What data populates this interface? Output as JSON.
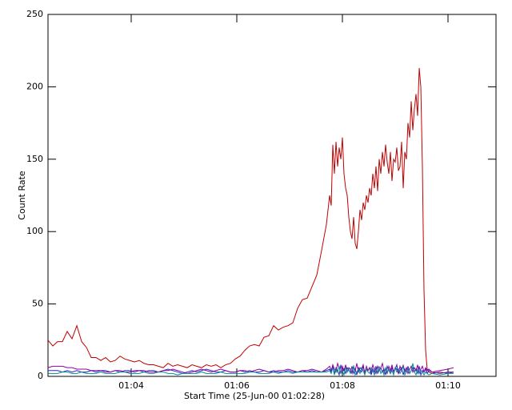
{
  "chart_data": {
    "type": "line",
    "xlabel": "Start Time (25-Jun-00 01:02:28)",
    "ylabel": "Count Rate",
    "x": [
      62.424,
      62.515,
      62.606,
      62.697,
      62.788,
      62.879,
      62.97,
      63.061,
      63.152,
      63.242,
      63.333,
      63.424,
      63.515,
      63.606,
      63.697,
      63.788,
      63.879,
      63.97,
      64.061,
      64.152,
      64.242,
      64.333,
      64.424,
      64.515,
      64.606,
      64.697,
      64.788,
      64.879,
      64.97,
      65.061,
      65.152,
      65.242,
      65.333,
      65.424,
      65.515,
      65.606,
      65.697,
      65.788,
      65.879,
      65.97,
      66.061,
      66.152,
      66.242,
      66.333,
      66.424,
      66.515,
      66.606,
      66.697,
      66.788,
      66.879,
      66.97,
      67.061,
      67.152,
      67.242,
      67.333,
      67.424,
      67.515,
      67.606,
      67.697,
      67.758,
      67.788,
      67.818,
      67.848,
      67.879,
      67.909,
      67.939,
      67.97,
      68.0,
      68.03,
      68.061,
      68.091,
      68.121,
      68.152,
      68.182,
      68.212,
      68.242,
      68.273,
      68.303,
      68.333,
      68.364,
      68.394,
      68.424,
      68.455,
      68.485,
      68.515,
      68.545,
      68.576,
      68.606,
      68.636,
      68.667,
      68.697,
      68.727,
      68.758,
      68.788,
      68.818,
      68.848,
      68.879,
      68.909,
      68.939,
      68.97,
      69.0,
      69.03,
      69.061,
      69.091,
      69.121,
      69.152,
      69.182,
      69.212,
      69.242,
      69.273,
      69.303,
      69.333,
      69.364,
      69.394,
      69.424,
      69.455,
      69.485,
      69.515,
      69.545,
      69.576,
      69.606,
      69.636,
      69.697,
      69.848,
      70.0,
      70.106
    ],
    "series": [
      {
        "color": "#c00000",
        "values": [
          25,
          21,
          24,
          24,
          31,
          26,
          35,
          24,
          20,
          13,
          13,
          11,
          13,
          10,
          11,
          14,
          12,
          11,
          10,
          11,
          9,
          8,
          8,
          7,
          6,
          9,
          7,
          8,
          7,
          6,
          8,
          7,
          6,
          8,
          7,
          8,
          6,
          8,
          9,
          12,
          14,
          18,
          21,
          22,
          21,
          27,
          28,
          35,
          32,
          34,
          35,
          37,
          47,
          53,
          54,
          62,
          70,
          87,
          105,
          125,
          118,
          160,
          140,
          162,
          145,
          158,
          150,
          165,
          140,
          130,
          125,
          110,
          100,
          95,
          110,
          92,
          88,
          100,
          115,
          108,
          120,
          115,
          125,
          120,
          130,
          125,
          140,
          130,
          145,
          128,
          150,
          140,
          155,
          145,
          160,
          148,
          140,
          155,
          135,
          150,
          148,
          158,
          142,
          145,
          162,
          130,
          155,
          150,
          175,
          165,
          190,
          170,
          185,
          195,
          180,
          213,
          200,
          145,
          60,
          18,
          5,
          3,
          2,
          3,
          2,
          3
        ]
      },
      {
        "color": "#2828d0",
        "values": [
          4,
          4,
          4,
          3,
          4,
          3,
          4,
          3,
          3,
          4,
          3,
          4,
          4,
          3,
          4,
          3,
          4,
          4,
          3,
          4,
          3,
          4,
          4,
          3,
          4,
          5,
          4,
          3,
          2,
          3,
          4,
          3,
          4,
          5,
          4,
          3,
          3,
          4,
          3,
          3,
          4,
          3,
          4,
          3,
          3,
          4,
          3,
          4,
          3,
          3,
          4,
          3,
          3,
          4,
          3,
          4,
          3,
          3,
          4,
          5,
          3,
          7,
          2,
          6,
          4,
          1,
          8,
          3,
          5,
          2,
          6,
          4,
          3,
          7,
          2,
          5,
          1,
          6,
          4,
          3,
          7,
          2,
          5,
          4,
          6,
          1,
          5,
          3,
          7,
          2,
          4,
          6,
          3,
          5,
          1,
          7,
          4,
          2,
          6,
          3,
          5,
          8,
          2,
          4,
          6,
          1,
          5,
          3,
          7,
          2,
          4,
          6,
          3,
          5,
          2,
          7,
          1,
          4,
          3,
          5,
          2,
          4,
          3,
          2,
          3,
          3
        ]
      },
      {
        "color": "#9000a0",
        "values": [
          6,
          7,
          7,
          7,
          6,
          6,
          5,
          5,
          5,
          4,
          4,
          4,
          3,
          3,
          4,
          4,
          3,
          3,
          4,
          4,
          4,
          3,
          3,
          3,
          4,
          4,
          5,
          4,
          3,
          2,
          3,
          4,
          5,
          4,
          3,
          4,
          5,
          4,
          3,
          3,
          4,
          4,
          3,
          4,
          5,
          4,
          3,
          3,
          4,
          4,
          5,
          4,
          3,
          4,
          4,
          5,
          4,
          3,
          5,
          7,
          4,
          8,
          5,
          3,
          9,
          6,
          2,
          7,
          4,
          8,
          3,
          6,
          5,
          2,
          7,
          4,
          9,
          3,
          6,
          5,
          8,
          2,
          7,
          4,
          6,
          3,
          8,
          5,
          2,
          7,
          4,
          6,
          9,
          3,
          5,
          2,
          7,
          4,
          8,
          3,
          6,
          5,
          2,
          7,
          4,
          8,
          3,
          6,
          2,
          5,
          7,
          3,
          6,
          4,
          8,
          2,
          5,
          7,
          3,
          6,
          4,
          5,
          3,
          4,
          5,
          6
        ]
      },
      {
        "color": "#009090",
        "values": [
          2,
          2,
          2,
          3,
          3,
          2,
          2,
          3,
          2,
          2,
          2,
          3,
          2,
          2,
          2,
          3,
          3,
          2,
          2,
          2,
          3,
          2,
          2,
          3,
          3,
          2,
          2,
          1,
          2,
          2,
          2,
          2,
          3,
          2,
          2,
          2,
          3,
          2,
          2,
          2,
          2,
          2,
          3,
          3,
          2,
          2,
          2,
          3,
          2,
          3,
          3,
          2,
          3,
          3,
          3,
          3,
          3,
          3,
          3,
          4,
          2,
          6,
          1,
          5,
          3,
          7,
          2,
          4,
          1,
          6,
          3,
          5,
          2,
          4,
          7,
          1,
          3,
          5,
          2,
          6,
          4,
          1,
          5,
          3,
          2,
          6,
          4,
          1,
          5,
          3,
          7,
          2,
          4,
          1,
          6,
          3,
          5,
          2,
          4,
          1,
          6,
          3,
          5,
          2,
          4,
          7,
          1,
          3,
          5,
          2,
          4,
          9,
          3,
          1,
          5,
          2,
          4,
          3,
          1,
          3,
          2,
          1,
          2,
          1,
          2,
          2
        ]
      }
    ],
    "xlim": [
      62.424,
      70.909
    ],
    "xticks": [
      {
        "value": 64,
        "label": "01:04"
      },
      {
        "value": 66,
        "label": "01:06"
      },
      {
        "value": 68,
        "label": "01:08"
      },
      {
        "value": 70,
        "label": "01:10"
      }
    ],
    "ylim": [
      0,
      250
    ],
    "yticks": [
      0,
      50,
      100,
      150,
      200,
      250
    ],
    "grid": false
  }
}
